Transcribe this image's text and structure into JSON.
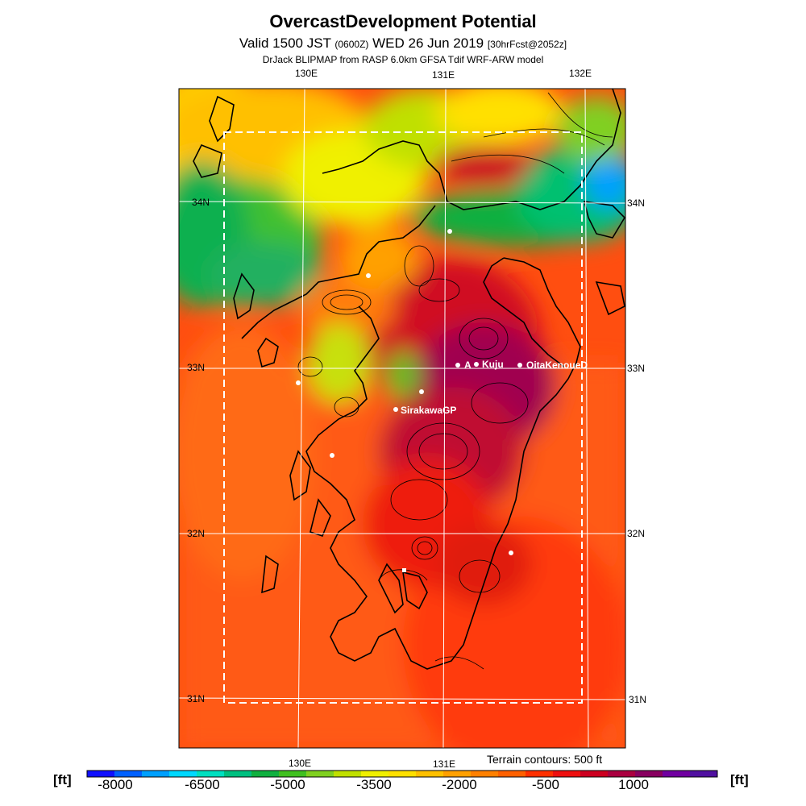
{
  "header": {
    "title": "OvercastDevelopment Potential",
    "valid_main": "Valid 1500 JST ",
    "valid_utc": "(0600Z)",
    "valid_date": " WED 26 Jun 2019 ",
    "valid_fcst": "[30hrFcst@2052z]",
    "model_line": "DrJack BLIPMAP from RASP 6.0km GFSA Tdif WRF-ARW model"
  },
  "axes": {
    "lon_top": [
      "130E",
      "131E",
      "132E"
    ],
    "lon_bottom": [
      "130E",
      "131E"
    ],
    "lat_left": [
      "34N",
      "33N",
      "32N",
      "31N"
    ],
    "lat_right": [
      "34N",
      "33N",
      "32N",
      "31N"
    ]
  },
  "sites": {
    "a": "A",
    "kuju": "Kuju",
    "oita": "OitaKenoueD",
    "sirakawa": "SirakawaGP"
  },
  "colorbar": {
    "unit_left": "[ft]",
    "unit_right": "[ft]",
    "terrain_note": "Terrain contours: 500 ft",
    "labels": [
      "-8000",
      "-6500",
      "-5000",
      "-3500",
      "-2000",
      "-500",
      "1000"
    ],
    "colors": [
      "#1010ff",
      "#0060ff",
      "#00a0ff",
      "#00d8ff",
      "#00e0c0",
      "#00c080",
      "#10b040",
      "#40c020",
      "#80d020",
      "#c0e000",
      "#f0f000",
      "#ffe000",
      "#ffc000",
      "#ffa000",
      "#ff8000",
      "#ff6000",
      "#ff3000",
      "#ee1010",
      "#cc0020",
      "#aa0040",
      "#880060",
      "#7000a0",
      "#5010a0"
    ]
  }
}
